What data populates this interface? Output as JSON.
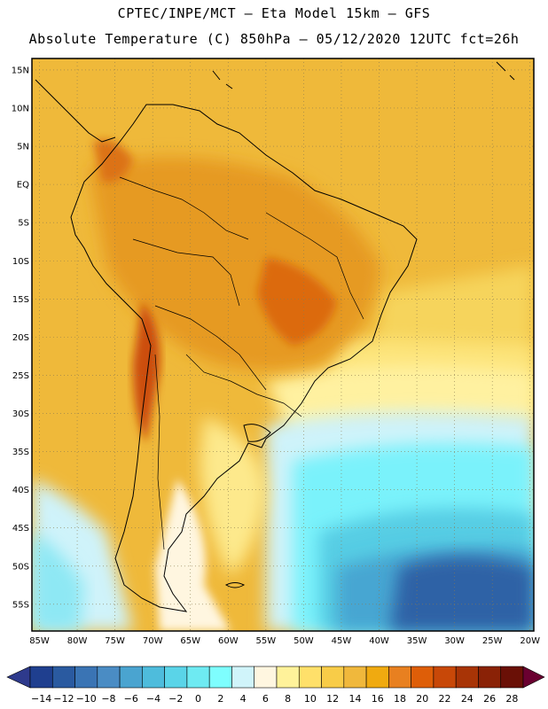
{
  "header": {
    "title_line1": "CPTEC/INPE/MCT –  Eta Model 15km – GFS",
    "title_line2": "Absolute Temperature (C) 850hPa – 05/12/2020 12UTC fct=26h"
  },
  "map": {
    "lat_labels": [
      "15N",
      "10N",
      "5N",
      "EQ",
      "5S",
      "10S",
      "15S",
      "20S",
      "25S",
      "30S",
      "35S",
      "40S",
      "45S",
      "50S",
      "55S"
    ],
    "lat_values": [
      15,
      10,
      5,
      0,
      -5,
      -10,
      -15,
      -20,
      -25,
      -30,
      -35,
      -40,
      -45,
      -50,
      -55
    ],
    "lon_labels": [
      "85W",
      "80W",
      "75W",
      "70W",
      "65W",
      "60W",
      "55W",
      "50W",
      "45W",
      "40W",
      "35W",
      "30W",
      "25W",
      "20W"
    ],
    "lon_values": [
      -85,
      -80,
      -75,
      -70,
      -65,
      -60,
      -55,
      -50,
      -45,
      -40,
      -35,
      -30,
      -25,
      -20
    ],
    "lat_range": [
      -58.5,
      16.5
    ],
    "lon_range": [
      -86,
      -19.5
    ]
  },
  "colorbar": {
    "labels": [
      "−14",
      "−12",
      "−10",
      "−8",
      "−6",
      "−4",
      "−2",
      "0",
      "2",
      "4",
      "6",
      "8",
      "10",
      "12",
      "14",
      "16",
      "18",
      "20",
      "22",
      "24",
      "26",
      "28"
    ],
    "colors": [
      "#1f3f8f",
      "#2a5aa0",
      "#3a74b4",
      "#4a8cc4",
      "#4aa4d0",
      "#4ebcdc",
      "#5ad4e8",
      "#6eeaf2",
      "#7efefe",
      "#d0f4fa",
      "#fff6e0",
      "#fff29a",
      "#ffe06a",
      "#f8cc48",
      "#f0b83c",
      "#f0aa10",
      "#e88020",
      "#de5e08",
      "#c84808",
      "#a83406",
      "#8a2206",
      "#6a1006"
    ]
  },
  "legend_colors": {
    "ocean_warm": "#efba3c",
    "land_hot": "#e4a030",
    "cold_pool": "#28589c"
  }
}
